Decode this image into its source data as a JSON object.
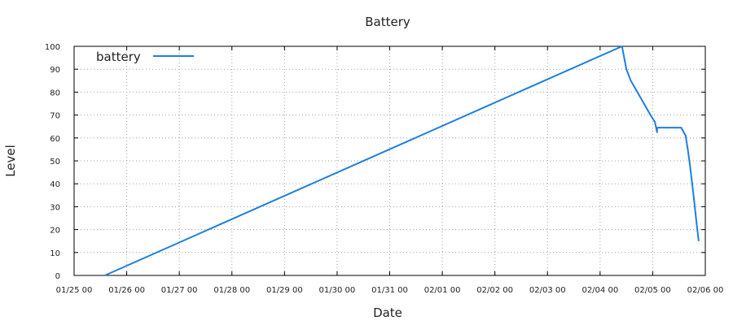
{
  "chart_data": {
    "type": "line",
    "title": "Battery",
    "xlabel": "Date",
    "ylabel": "Level",
    "xlim": [
      "01/25 00",
      "02/06 00"
    ],
    "ylim": [
      0,
      100
    ],
    "grid": true,
    "legend_position": "top-left",
    "x_ticks": [
      "01/25 00",
      "01/26 00",
      "01/27 00",
      "01/28 00",
      "01/29 00",
      "01/30 00",
      "01/31 00",
      "02/01 00",
      "02/02 00",
      "02/03 00",
      "02/04 00",
      "02/05 00",
      "02/06 00"
    ],
    "y_ticks": [
      0,
      10,
      20,
      30,
      40,
      50,
      60,
      70,
      80,
      90,
      100
    ],
    "series": [
      {
        "name": "battery",
        "color": "#1e7fdc",
        "points": [
          [
            "01/25 14",
            0
          ],
          [
            "02/04 10",
            100
          ],
          [
            "02/04 11",
            95
          ],
          [
            "02/04 12",
            90
          ],
          [
            "02/04 14",
            85
          ],
          [
            "02/04 17",
            80
          ],
          [
            "02/04 20",
            75
          ],
          [
            "02/04 23",
            70
          ],
          [
            "02/05 01",
            67
          ],
          [
            "02/05 02",
            62.5
          ],
          [
            "02/05 02",
            64.5
          ],
          [
            "02/05 13",
            64.5
          ],
          [
            "02/05 15",
            61
          ],
          [
            "02/05 16",
            55
          ],
          [
            "02/05 17",
            48
          ],
          [
            "02/05 18",
            40
          ],
          [
            "02/05 19",
            32
          ],
          [
            "02/05 20",
            23
          ],
          [
            "02/05 21",
            15
          ]
        ]
      }
    ]
  }
}
